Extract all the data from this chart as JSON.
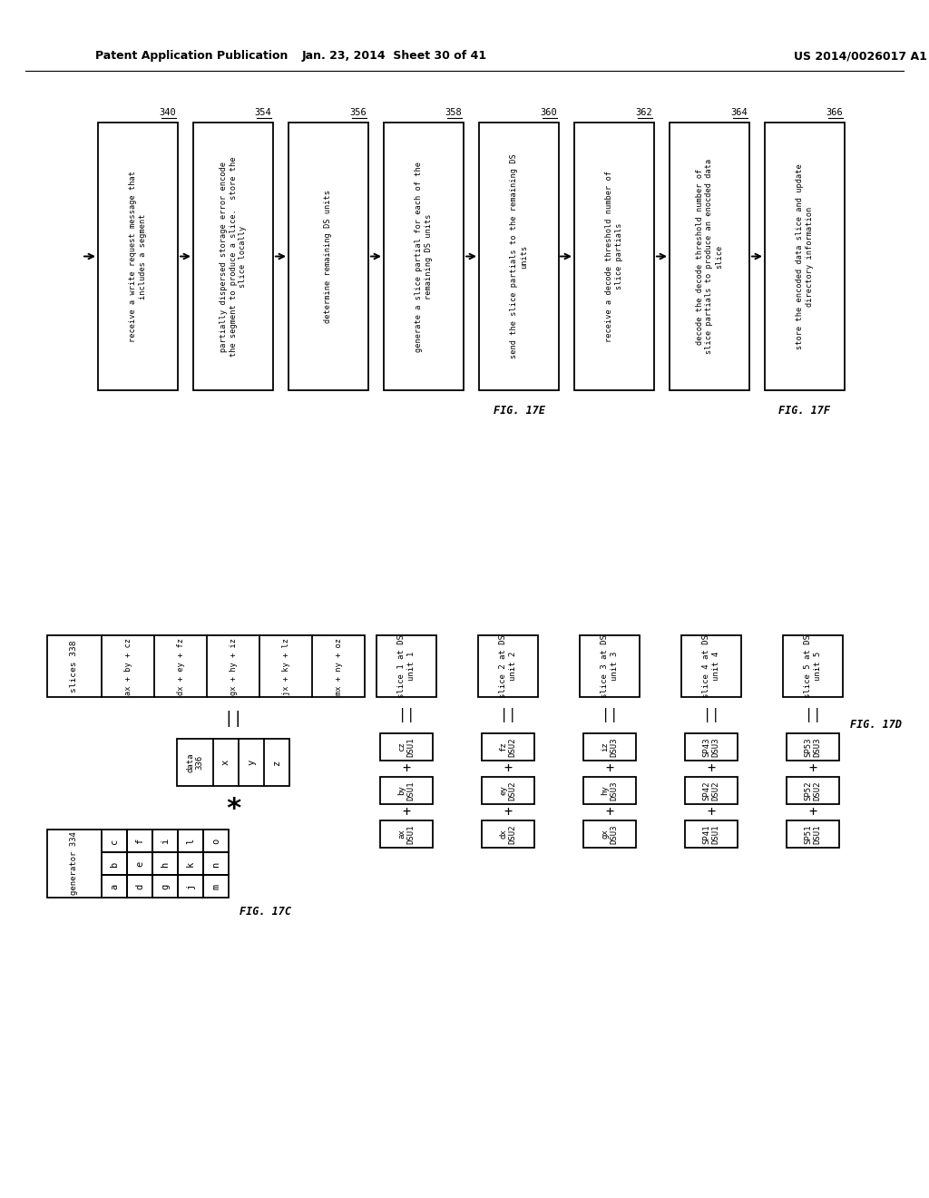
{
  "header_left": "Patent Application Publication",
  "header_mid": "Jan. 23, 2014  Sheet 30 of 41",
  "header_right": "US 2014/0026017 A1",
  "fig17e_boxes": [
    {
      "label": "340",
      "text": "receive a write request message that\nincludes a segment"
    },
    {
      "label": "354",
      "text": "partially dispersed storage error encode\nthe segment to produce a slice.  store the\nslice locally"
    },
    {
      "label": "356",
      "text": "determine remaining DS units"
    },
    {
      "label": "358",
      "text": "generate a slice partial for each of the\nremaining DS units"
    },
    {
      "label": "360",
      "text": "send the slice partials to the remaining DS\nunits"
    }
  ],
  "fig17e_title": "FIG. 17E",
  "fig17f_boxes": [
    {
      "label": "362",
      "text": "receive a decode threshold number of\nslice partials"
    },
    {
      "label": "364",
      "text": "decode the decode threshold number of\nslice partials to produce an enocded data\nslice"
    },
    {
      "label": "366",
      "text": "store the encoded data slice and update\ndirectory information"
    }
  ],
  "fig17f_title": "FIG. 17F",
  "fig17c_title": "FIG. 17C",
  "generator_grid": [
    [
      "a",
      "b",
      "c"
    ],
    [
      "d",
      "e",
      "f"
    ],
    [
      "g",
      "h",
      "i"
    ],
    [
      "j",
      "k",
      "l"
    ],
    [
      "m",
      "n",
      "o"
    ]
  ],
  "data_grid": [
    "x",
    "y",
    "z"
  ],
  "slices_grid": [
    "ax + by + cz",
    "dx + ey + fz",
    "gx + hy + iz",
    "jx + ky + lz",
    "mx + ny + oz"
  ],
  "fig17d_title": "FIG. 17D",
  "slice_labels": [
    "slice 1 at DS\nunit 1",
    "slice 2 at DS\nunit 2",
    "slice 3 at DS\nunit 3",
    "slice 4 at DS\nunit 4",
    "slice 5 at DS\nunit 5"
  ],
  "slice_equations": [
    [
      [
        "ax",
        "DSU1"
      ],
      [
        "by",
        "DSU1"
      ],
      [
        "cz",
        "DSU1"
      ]
    ],
    [
      [
        "dx",
        "DSU2"
      ],
      [
        "ey",
        "DSU2"
      ],
      [
        "fz",
        "DSU2"
      ]
    ],
    [
      [
        "gx",
        "DSU3"
      ],
      [
        "hy",
        "DSU3"
      ],
      [
        "iz",
        "DSU3"
      ]
    ],
    [
      [
        "SP41",
        "DSU1"
      ],
      [
        "SP42",
        "DSU2"
      ],
      [
        "SP43",
        "DSU3"
      ]
    ],
    [
      [
        "SP51",
        "DSU1"
      ],
      [
        "SP52",
        "DSU2"
      ],
      [
        "SP53",
        "DSU3"
      ]
    ]
  ]
}
